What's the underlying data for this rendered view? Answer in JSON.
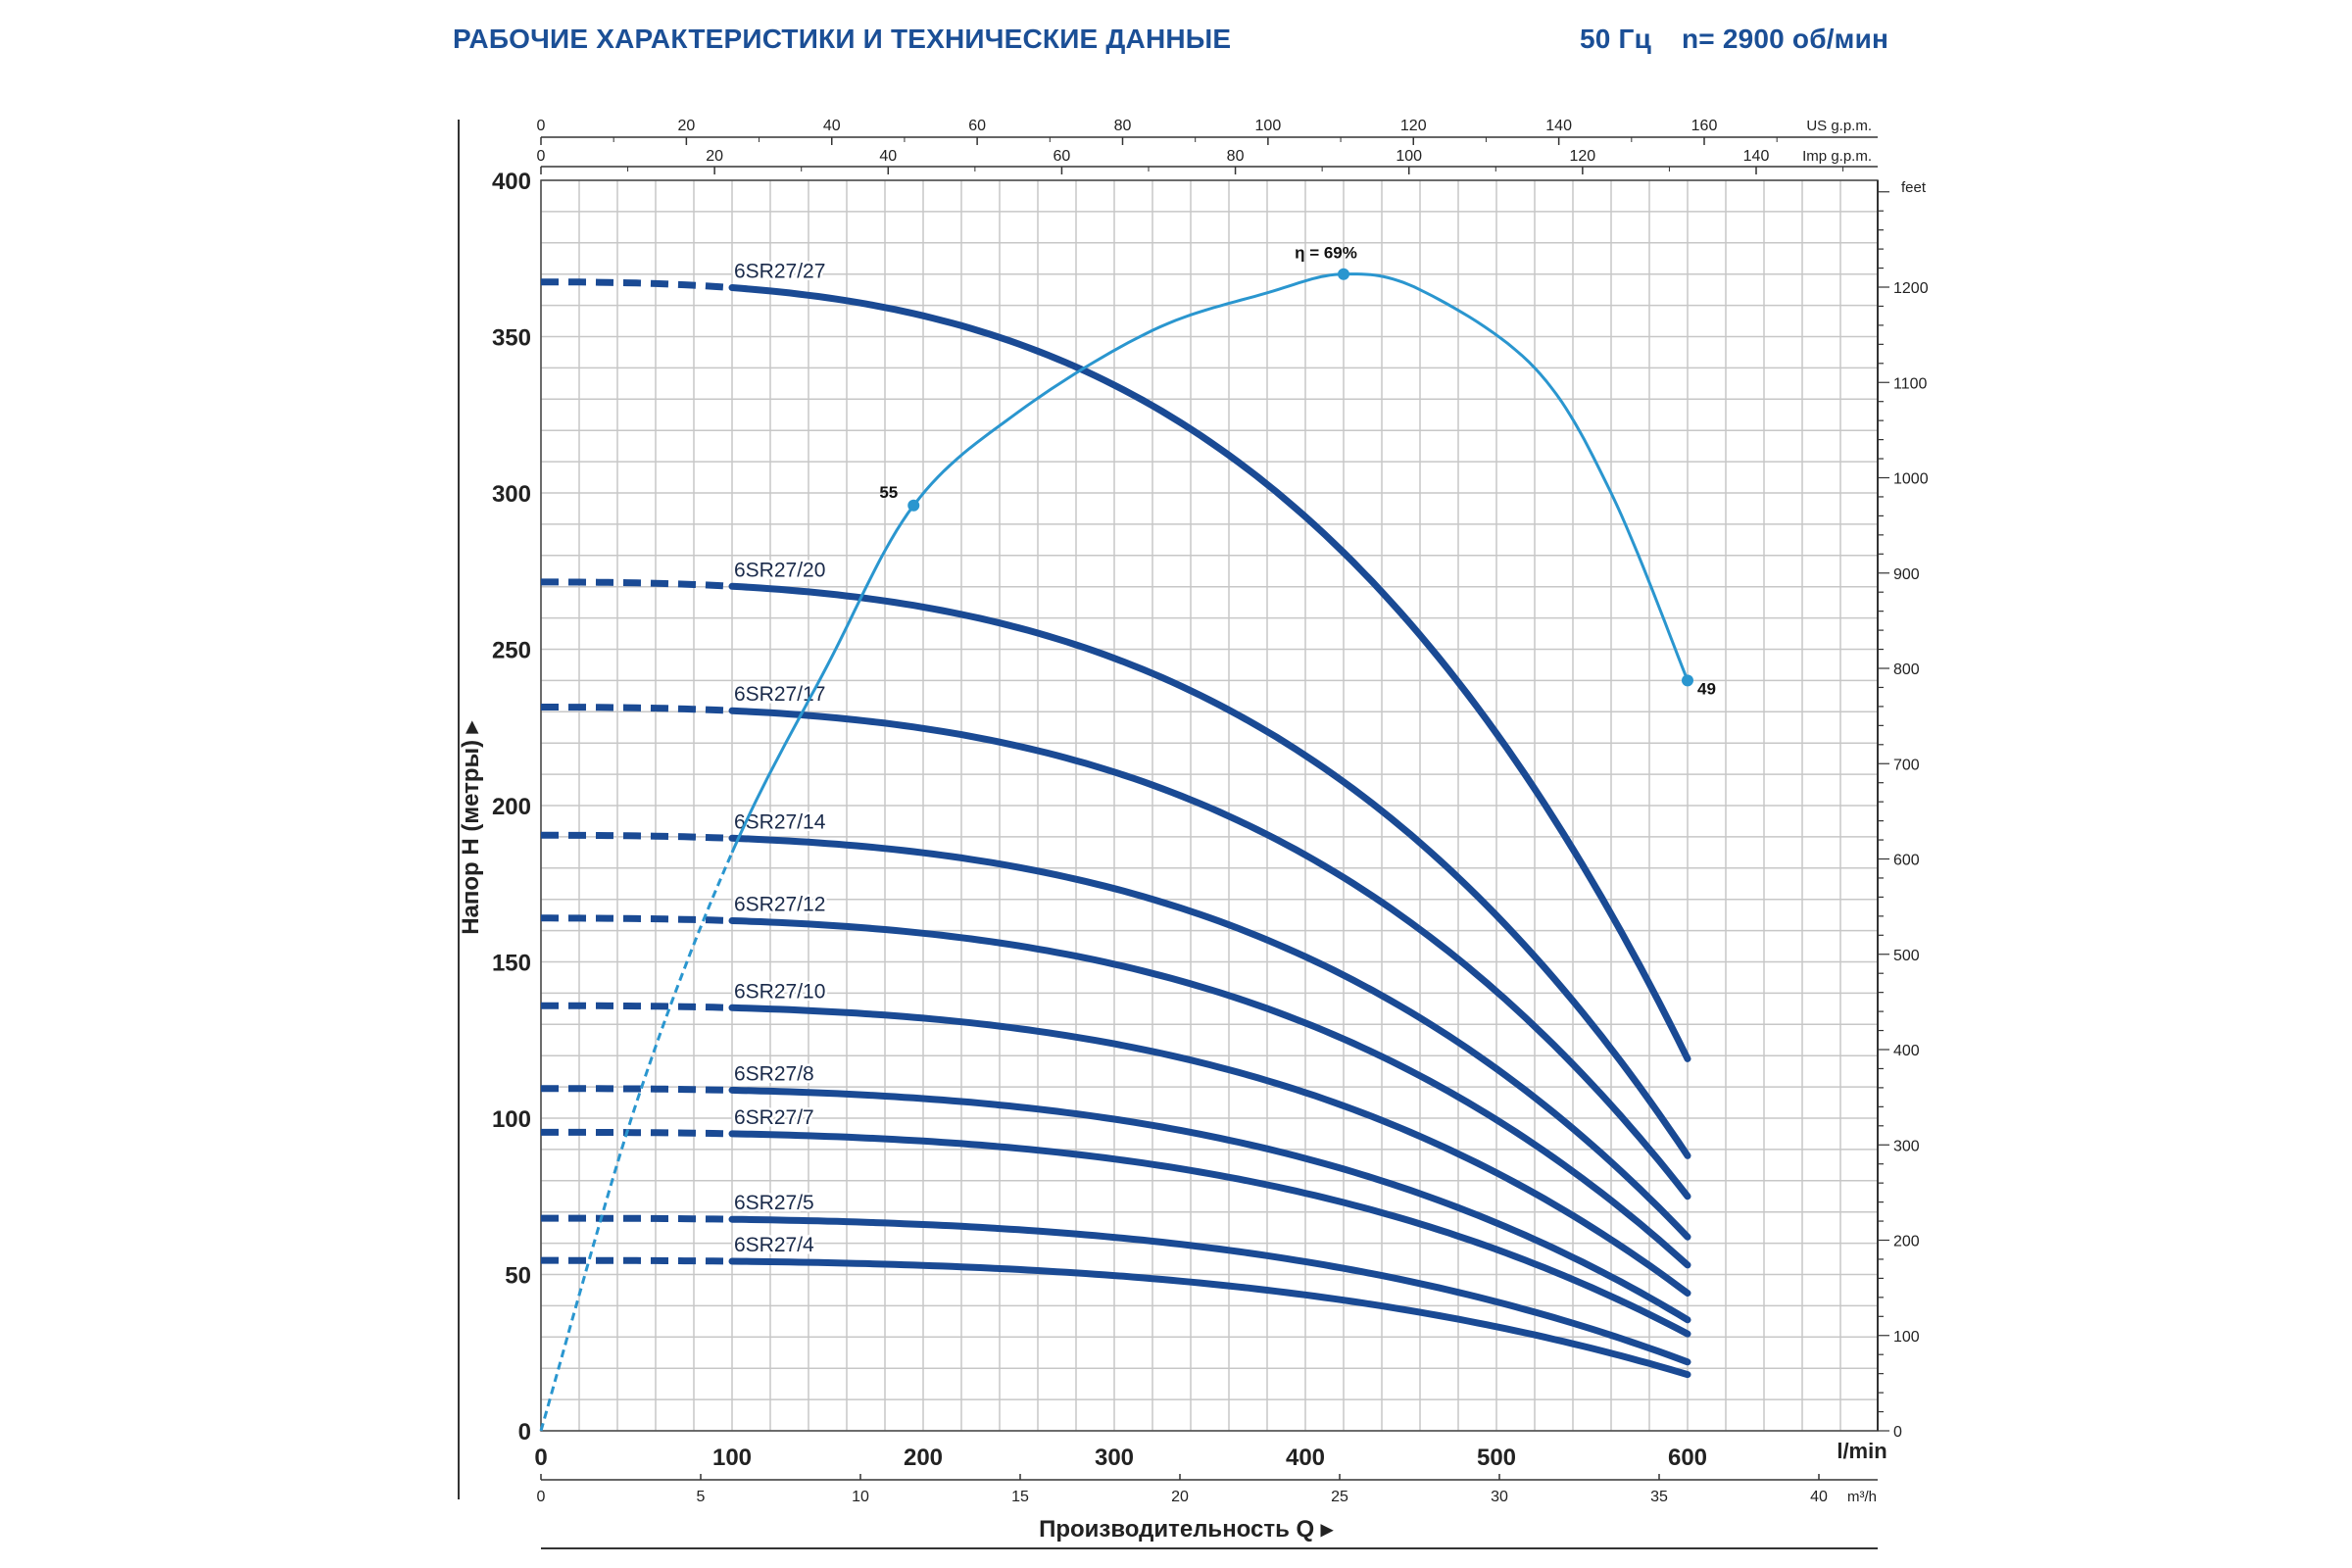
{
  "header": {
    "title": "РАБОЧИЕ ХАРАКТЕРИСТИКИ И ТЕХНИЧЕСКИЕ ДАННЫЕ",
    "frequency": "50 Гц",
    "speed": "n= 2900 об/мин"
  },
  "colors": {
    "title": "#1b4f96",
    "curve": "#1a4a94",
    "efficiency": "#2a96cf",
    "grid": "#c7c7c7",
    "axis": "#222222"
  },
  "chart_data": {
    "type": "line",
    "ylabel": "Напор H (метры)",
    "xlabel": "Производительность Q",
    "x_unit": "l/min",
    "ylim": [
      0,
      400
    ],
    "xlim": [
      0,
      700
    ],
    "grid": true,
    "y_ticks": [
      0,
      50,
      100,
      150,
      200,
      250,
      300,
      350,
      400
    ],
    "x_ticks": [
      0,
      100,
      200,
      300,
      400,
      500,
      600
    ],
    "secondary_axes": {
      "top_us": {
        "label": "US g.p.m.",
        "ticks": [
          0,
          20,
          40,
          60,
          80,
          100,
          120,
          140,
          160
        ]
      },
      "top_imp": {
        "label": "Imp g.p.m.",
        "ticks": [
          0,
          20,
          40,
          60,
          80,
          100,
          120,
          140
        ]
      },
      "bottom_m3h": {
        "label": "m³/h",
        "ticks": [
          0,
          5,
          10,
          15,
          20,
          25,
          30,
          35,
          40
        ]
      },
      "right_feet": {
        "label": "feet",
        "ticks": [
          0,
          100,
          200,
          300,
          400,
          500,
          600,
          700,
          800,
          900,
          1000,
          1100,
          1200
        ]
      }
    },
    "series": [
      {
        "name": "6SR27/27",
        "start": 367.5,
        "end": 119,
        "dashed_until": 100
      },
      {
        "name": "6SR27/20",
        "start": 271.5,
        "end": 88,
        "dashed_until": 100
      },
      {
        "name": "6SR27/17",
        "start": 231.5,
        "end": 75,
        "dashed_until": 100
      },
      {
        "name": "6SR27/14",
        "start": 190.5,
        "end": 62,
        "dashed_until": 100
      },
      {
        "name": "6SR27/12",
        "start": 164,
        "end": 53,
        "dashed_until": 100
      },
      {
        "name": "6SR27/10",
        "start": 136,
        "end": 44,
        "dashed_until": 100
      },
      {
        "name": "6SR27/8",
        "start": 109.5,
        "end": 35.5,
        "dashed_until": 100
      },
      {
        "name": "6SR27/7",
        "start": 95.5,
        "end": 31,
        "dashed_until": 100
      },
      {
        "name": "6SR27/5",
        "start": 68,
        "end": 22,
        "dashed_until": 100
      },
      {
        "name": "6SR27/4",
        "start": 54.5,
        "end": 18,
        "dashed_until": 100
      }
    ],
    "efficiency": {
      "points": [
        {
          "x": 0,
          "y": 0
        },
        {
          "x": 50,
          "y": 105
        },
        {
          "x": 100,
          "y": 185
        },
        {
          "x": 150,
          "y": 245
        },
        {
          "x": 195,
          "y": 296
        },
        {
          "x": 250,
          "y": 326
        },
        {
          "x": 320,
          "y": 352
        },
        {
          "x": 380,
          "y": 364
        },
        {
          "x": 420,
          "y": 370
        },
        {
          "x": 460,
          "y": 365
        },
        {
          "x": 520,
          "y": 340
        },
        {
          "x": 560,
          "y": 300
        },
        {
          "x": 600,
          "y": 240
        }
      ],
      "dashed_until": 100,
      "markers": [
        {
          "x": 195,
          "y": 296,
          "label": "55"
        },
        {
          "x": 420,
          "y": 370,
          "label": "η = 69%"
        },
        {
          "x": 600,
          "y": 240,
          "label": "49"
        }
      ]
    }
  }
}
